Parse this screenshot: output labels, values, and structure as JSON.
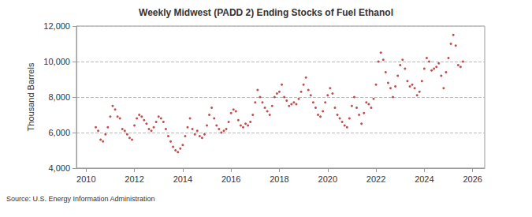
{
  "chart_data": {
    "type": "scatter",
    "title": "Weekly Midwest (PADD 2) Ending Stocks of Fuel Ethanol",
    "y_label": "Thousand Barrels",
    "source": "Source: U.S. Energy Information Administration",
    "color": "#b22222",
    "marker": "circle",
    "grid": true,
    "xlim": [
      2009.6,
      2026.5
    ],
    "xticks": [
      2010,
      2012,
      2014,
      2016,
      2018,
      2020,
      2022,
      2024,
      2026
    ],
    "ylim": [
      4000,
      12000
    ],
    "yticks": [
      {
        "value": 4000,
        "label": "4,000"
      },
      {
        "value": 6000,
        "label": "6,000"
      },
      {
        "value": 8000,
        "label": "8,000"
      },
      {
        "value": 10000,
        "label": "10,000"
      },
      {
        "value": 12000,
        "label": "12,000"
      }
    ],
    "x": [
      2010.4,
      2010.5,
      2010.6,
      2010.7,
      2010.8,
      2010.9,
      2011.0,
      2011.1,
      2011.2,
      2011.3,
      2011.4,
      2011.5,
      2011.6,
      2011.7,
      2011.8,
      2011.9,
      2012.0,
      2012.1,
      2012.2,
      2012.3,
      2012.4,
      2012.5,
      2012.6,
      2012.7,
      2012.8,
      2012.9,
      2013.0,
      2013.1,
      2013.2,
      2013.3,
      2013.4,
      2013.5,
      2013.6,
      2013.7,
      2013.8,
      2013.9,
      2014.0,
      2014.1,
      2014.2,
      2014.3,
      2014.4,
      2014.5,
      2014.6,
      2014.7,
      2014.8,
      2014.9,
      2015.0,
      2015.1,
      2015.2,
      2015.3,
      2015.4,
      2015.5,
      2015.6,
      2015.7,
      2015.8,
      2015.9,
      2016.0,
      2016.1,
      2016.2,
      2016.3,
      2016.4,
      2016.5,
      2016.6,
      2016.7,
      2016.8,
      2016.9,
      2017.0,
      2017.1,
      2017.2,
      2017.3,
      2017.4,
      2017.5,
      2017.6,
      2017.7,
      2017.8,
      2017.9,
      2018.0,
      2018.1,
      2018.2,
      2018.3,
      2018.4,
      2018.5,
      2018.6,
      2018.7,
      2018.8,
      2018.9,
      2019.0,
      2019.1,
      2019.2,
      2019.3,
      2019.4,
      2019.5,
      2019.6,
      2019.7,
      2019.8,
      2019.9,
      2020.0,
      2020.1,
      2020.2,
      2020.3,
      2020.4,
      2020.5,
      2020.6,
      2020.7,
      2020.8,
      2020.9,
      2021.0,
      2021.1,
      2021.2,
      2021.3,
      2021.4,
      2021.5,
      2021.6,
      2021.7,
      2021.8,
      2021.9,
      2022.0,
      2022.1,
      2022.2,
      2022.3,
      2022.4,
      2022.5,
      2022.6,
      2022.7,
      2022.8,
      2022.9,
      2023.0,
      2023.1,
      2023.2,
      2023.3,
      2023.4,
      2023.5,
      2023.6,
      2023.7,
      2023.8,
      2023.9,
      2024.0,
      2024.1,
      2024.2,
      2024.3,
      2024.4,
      2024.5,
      2024.6,
      2024.7,
      2024.8,
      2024.9,
      2025.0,
      2025.1,
      2025.2,
      2025.3,
      2025.4,
      2025.5,
      2025.6
    ],
    "values": [
      6300,
      6100,
      5600,
      5500,
      5900,
      6300,
      6900,
      7500,
      7300,
      6900,
      6800,
      6200,
      6100,
      5900,
      5700,
      5600,
      6400,
      6800,
      7000,
      6900,
      6700,
      6500,
      6200,
      6100,
      6300,
      6600,
      6900,
      6800,
      6600,
      6200,
      5800,
      5500,
      5200,
      5000,
      4900,
      5100,
      5300,
      5800,
      6300,
      6800,
      6200,
      5900,
      6100,
      5800,
      5700,
      5900,
      6400,
      7000,
      7400,
      6800,
      6400,
      6200,
      6000,
      6100,
      6200,
      6600,
      7100,
      7300,
      7200,
      6700,
      6400,
      6300,
      6500,
      6400,
      6600,
      7000,
      7700,
      8400,
      8000,
      7700,
      7400,
      7200,
      7000,
      7500,
      8000,
      8200,
      8300,
      8700,
      8000,
      7800,
      7500,
      7600,
      7700,
      7600,
      7900,
      8300,
      8700,
      9100,
      8400,
      8100,
      7700,
      7400,
      7000,
      6900,
      7200,
      7700,
      8100,
      8500,
      8200,
      7400,
      7000,
      6800,
      6600,
      6400,
      6300,
      6800,
      7500,
      8000,
      7400,
      7000,
      6500,
      7100,
      7700,
      7600,
      7400,
      7900,
      8700,
      10000,
      10500,
      10100,
      9400,
      8800,
      8500,
      8000,
      8600,
      9200,
      9800,
      10100,
      9600,
      8900,
      8600,
      8700,
      8500,
      8100,
      8300,
      8900,
      9600,
      10200,
      10000,
      9500,
      9600,
      9700,
      9900,
      9200,
      8500,
      9400,
      10200,
      11000,
      11500,
      10900,
      9800,
      9700,
      10000
    ]
  }
}
